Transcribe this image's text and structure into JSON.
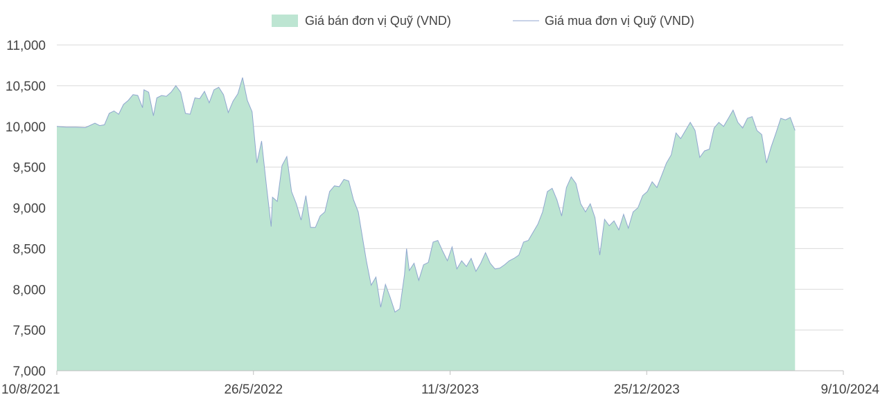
{
  "chart_data": {
    "type": "area",
    "title": "",
    "xlabel": "",
    "ylabel": "",
    "ylim": [
      7000,
      11000
    ],
    "yticks": [
      7000,
      7500,
      8000,
      8500,
      9000,
      9500,
      10000,
      10500,
      11000
    ],
    "ytick_labels": [
      "7,000",
      "7,500",
      "8,000",
      "8,500",
      "9,000",
      "9,500",
      "10,000",
      "10,500",
      "11,000"
    ],
    "xlim": [
      "2021-08-10",
      "2024-10-09"
    ],
    "xticks": [
      "2021-08-10",
      "2022-05-26",
      "2023-03-11",
      "2023-12-25",
      "2024-10-09"
    ],
    "xtick_labels": [
      "10/8/2021",
      "26/5/2022",
      "11/3/2023",
      "25/12/2023",
      "9/10/2024"
    ],
    "grid": true,
    "legend": "top",
    "colors": {
      "sell_fill": "#bde5d2",
      "buy_line": "#8fa6cf"
    },
    "series": [
      {
        "name": "Giá bán đơn vị Quỹ (VND)",
        "style": "area",
        "points": [
          [
            "2021-08-10",
            10000
          ],
          [
            "2021-08-24",
            9990
          ],
          [
            "2021-09-07",
            9990
          ],
          [
            "2021-09-21",
            9985
          ],
          [
            "2021-10-05",
            10040
          ],
          [
            "2021-10-12",
            10010
          ],
          [
            "2021-10-19",
            10020
          ],
          [
            "2021-10-26",
            10160
          ],
          [
            "2021-11-02",
            10190
          ],
          [
            "2021-11-09",
            10150
          ],
          [
            "2021-11-16",
            10270
          ],
          [
            "2021-11-23",
            10320
          ],
          [
            "2021-11-30",
            10390
          ],
          [
            "2021-12-07",
            10380
          ],
          [
            "2021-12-14",
            10230
          ],
          [
            "2021-12-16",
            10450
          ],
          [
            "2021-12-23",
            10420
          ],
          [
            "2021-12-30",
            10130
          ],
          [
            "2022-01-04",
            10350
          ],
          [
            "2022-01-11",
            10380
          ],
          [
            "2022-01-18",
            10370
          ],
          [
            "2022-01-25",
            10420
          ],
          [
            "2022-02-01",
            10500
          ],
          [
            "2022-02-08",
            10420
          ],
          [
            "2022-02-15",
            10160
          ],
          [
            "2022-02-22",
            10150
          ],
          [
            "2022-03-01",
            10350
          ],
          [
            "2022-03-08",
            10340
          ],
          [
            "2022-03-15",
            10430
          ],
          [
            "2022-03-22",
            10290
          ],
          [
            "2022-03-29",
            10450
          ],
          [
            "2022-04-05",
            10480
          ],
          [
            "2022-04-12",
            10390
          ],
          [
            "2022-04-19",
            10170
          ],
          [
            "2022-04-26",
            10310
          ],
          [
            "2022-05-03",
            10400
          ],
          [
            "2022-05-10",
            10600
          ],
          [
            "2022-05-17",
            10320
          ],
          [
            "2022-05-24",
            10180
          ],
          [
            "2022-05-31",
            9550
          ],
          [
            "2022-06-07",
            9820
          ],
          [
            "2022-06-14",
            9280
          ],
          [
            "2022-06-21",
            8770
          ],
          [
            "2022-06-23",
            9130
          ],
          [
            "2022-06-30",
            9080
          ],
          [
            "2022-07-07",
            9520
          ],
          [
            "2022-07-14",
            9630
          ],
          [
            "2022-07-21",
            9200
          ],
          [
            "2022-07-28",
            9050
          ],
          [
            "2022-08-04",
            8850
          ],
          [
            "2022-08-11",
            9150
          ],
          [
            "2022-08-18",
            8760
          ],
          [
            "2022-08-25",
            8760
          ],
          [
            "2022-09-01",
            8900
          ],
          [
            "2022-09-08",
            8950
          ],
          [
            "2022-09-15",
            9200
          ],
          [
            "2022-09-22",
            9270
          ],
          [
            "2022-09-29",
            9260
          ],
          [
            "2022-10-06",
            9350
          ],
          [
            "2022-10-13",
            9330
          ],
          [
            "2022-10-20",
            9100
          ],
          [
            "2022-10-27",
            8950
          ],
          [
            "2022-11-03",
            8600
          ],
          [
            "2022-11-08",
            8350
          ],
          [
            "2022-11-15",
            8050
          ],
          [
            "2022-11-22",
            8150
          ],
          [
            "2022-11-29",
            7780
          ],
          [
            "2022-12-06",
            8060
          ],
          [
            "2022-12-13",
            7900
          ],
          [
            "2022-12-20",
            7720
          ],
          [
            "2022-12-27",
            7760
          ],
          [
            "2023-01-03",
            8180
          ],
          [
            "2023-01-06",
            8500
          ],
          [
            "2023-01-10",
            8230
          ],
          [
            "2023-01-17",
            8320
          ],
          [
            "2023-01-24",
            8110
          ],
          [
            "2023-01-31",
            8300
          ],
          [
            "2023-02-07",
            8330
          ],
          [
            "2023-02-14",
            8580
          ],
          [
            "2023-02-21",
            8600
          ],
          [
            "2023-02-28",
            8470
          ],
          [
            "2023-03-07",
            8350
          ],
          [
            "2023-03-14",
            8520
          ],
          [
            "2023-03-21",
            8250
          ],
          [
            "2023-03-28",
            8350
          ],
          [
            "2023-04-04",
            8280
          ],
          [
            "2023-04-11",
            8380
          ],
          [
            "2023-04-18",
            8220
          ],
          [
            "2023-04-25",
            8320
          ],
          [
            "2023-05-02",
            8450
          ],
          [
            "2023-05-09",
            8320
          ],
          [
            "2023-05-16",
            8250
          ],
          [
            "2023-05-23",
            8260
          ],
          [
            "2023-05-30",
            8300
          ],
          [
            "2023-06-06",
            8350
          ],
          [
            "2023-06-13",
            8380
          ],
          [
            "2023-06-20",
            8420
          ],
          [
            "2023-06-27",
            8580
          ],
          [
            "2023-07-04",
            8600
          ],
          [
            "2023-07-11",
            8700
          ],
          [
            "2023-07-18",
            8800
          ],
          [
            "2023-07-25",
            8950
          ],
          [
            "2023-08-01",
            9200
          ],
          [
            "2023-08-08",
            9240
          ],
          [
            "2023-08-15",
            9100
          ],
          [
            "2023-08-22",
            8900
          ],
          [
            "2023-08-29",
            9250
          ],
          [
            "2023-09-05",
            9380
          ],
          [
            "2023-09-12",
            9300
          ],
          [
            "2023-09-19",
            9050
          ],
          [
            "2023-09-26",
            8950
          ],
          [
            "2023-10-03",
            9050
          ],
          [
            "2023-10-10",
            8880
          ],
          [
            "2023-10-17",
            8420
          ],
          [
            "2023-10-24",
            8860
          ],
          [
            "2023-10-31",
            8780
          ],
          [
            "2023-11-07",
            8840
          ],
          [
            "2023-11-14",
            8730
          ],
          [
            "2023-11-21",
            8920
          ],
          [
            "2023-11-28",
            8750
          ],
          [
            "2023-12-05",
            8950
          ],
          [
            "2023-12-12",
            9000
          ],
          [
            "2023-12-19",
            9150
          ],
          [
            "2023-12-26",
            9200
          ],
          [
            "2024-01-02",
            9320
          ],
          [
            "2024-01-09",
            9250
          ],
          [
            "2024-01-16",
            9400
          ],
          [
            "2024-01-23",
            9550
          ],
          [
            "2024-01-30",
            9650
          ],
          [
            "2024-02-06",
            9920
          ],
          [
            "2024-02-13",
            9850
          ],
          [
            "2024-02-20",
            9950
          ],
          [
            "2024-02-27",
            10050
          ],
          [
            "2024-03-05",
            9950
          ],
          [
            "2024-03-12",
            9620
          ],
          [
            "2024-03-19",
            9700
          ],
          [
            "2024-03-26",
            9720
          ],
          [
            "2024-04-02",
            9980
          ],
          [
            "2024-04-09",
            10050
          ],
          [
            "2024-04-16",
            10000
          ],
          [
            "2024-04-23",
            10100
          ],
          [
            "2024-04-30",
            10200
          ],
          [
            "2024-05-07",
            10050
          ],
          [
            "2024-05-14",
            9980
          ],
          [
            "2024-05-21",
            10100
          ],
          [
            "2024-05-28",
            10120
          ],
          [
            "2024-06-04",
            9950
          ],
          [
            "2024-06-11",
            9900
          ],
          [
            "2024-06-18",
            9550
          ],
          [
            "2024-06-25",
            9750
          ],
          [
            "2024-07-02",
            9920
          ],
          [
            "2024-07-09",
            10100
          ],
          [
            "2024-07-16",
            10080
          ],
          [
            "2024-07-23",
            10110
          ],
          [
            "2024-07-30",
            9950
          ]
        ]
      },
      {
        "name": "Giá mua đơn vị Quỹ (VND)",
        "style": "line",
        "note_same_as": "sell"
      }
    ]
  }
}
